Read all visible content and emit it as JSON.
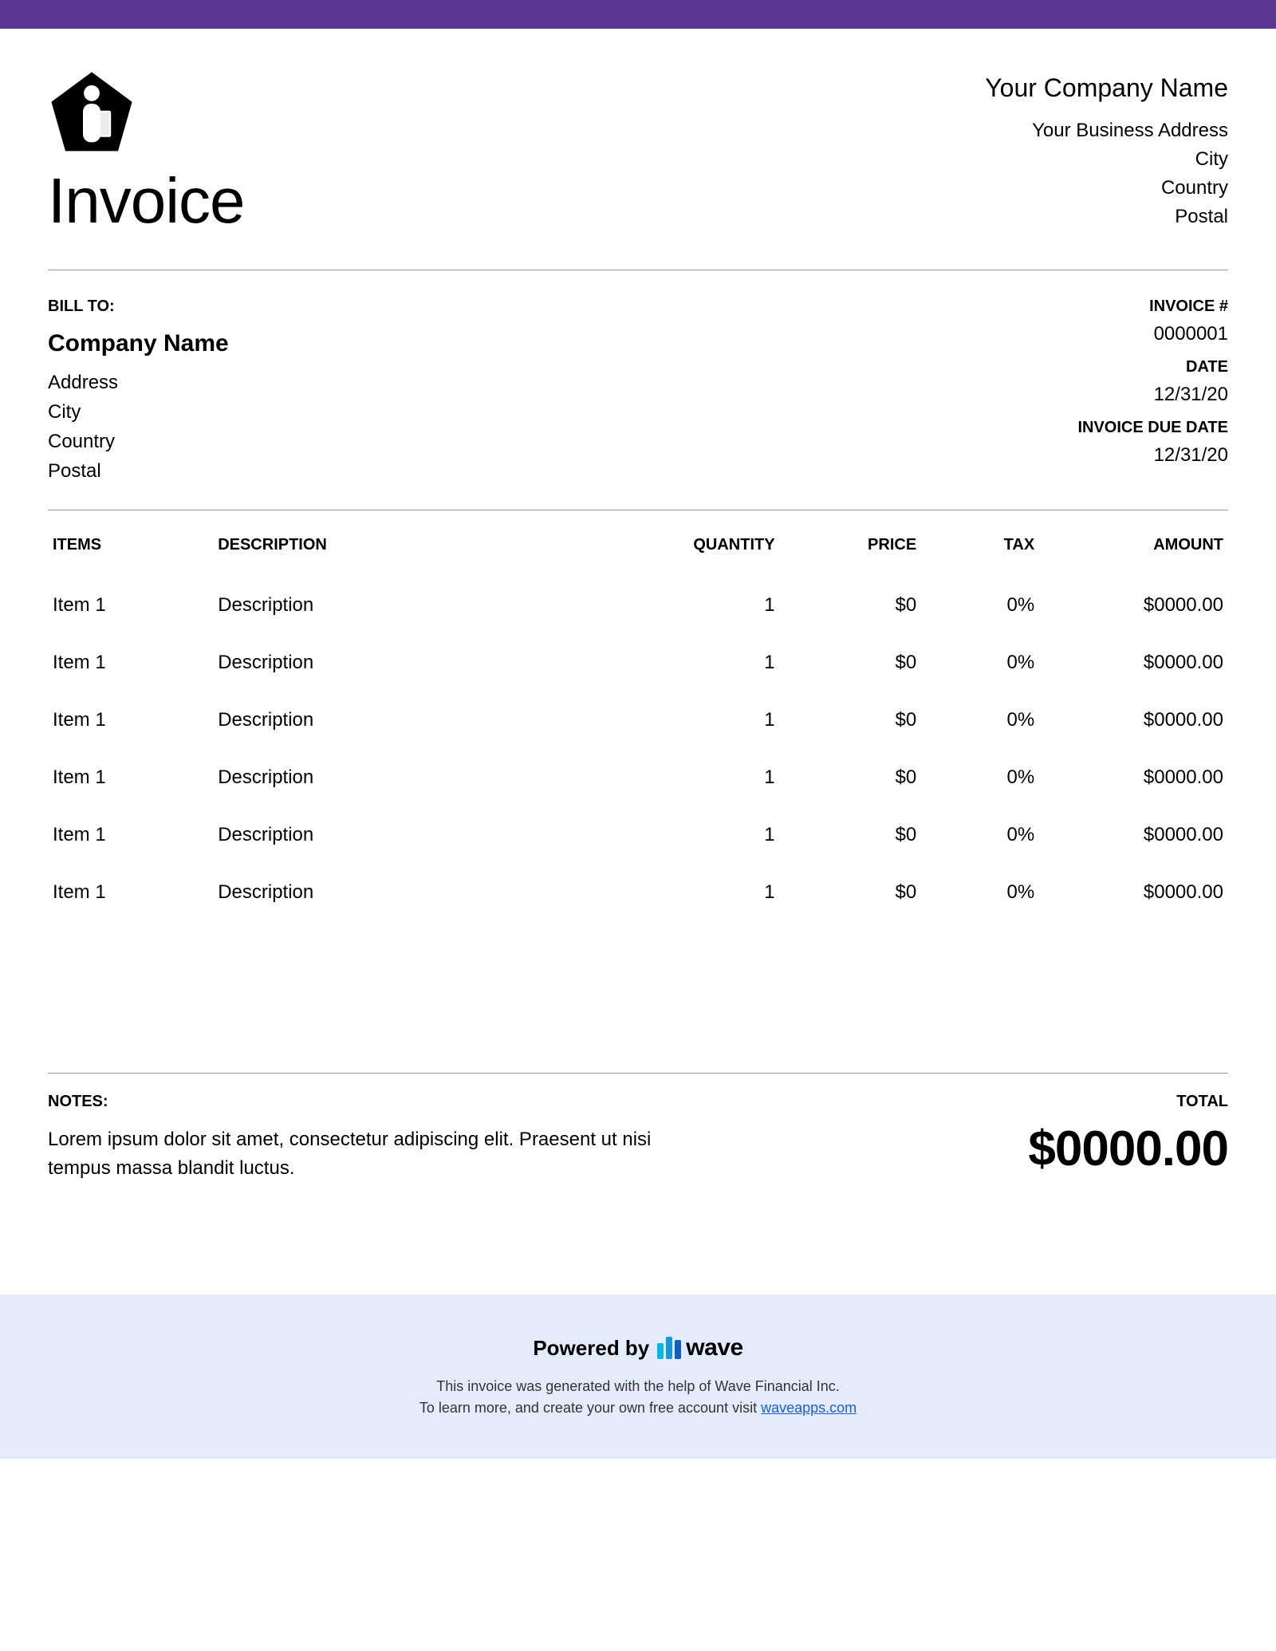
{
  "colors": {
    "topbar": "#5c3896",
    "footer_bg": "#e4ebfb",
    "text": "#000000",
    "divider": "#999999",
    "link": "#1a5fd0",
    "wave_bar1": "#0ab5e0",
    "wave_bar2": "#1498d8",
    "wave_bar3": "#0f5fbf"
  },
  "header": {
    "doc_title": "Invoice",
    "company_name": "Your Company Name",
    "address": "Your Business Address",
    "city": "City",
    "country": "Country",
    "postal": "Postal"
  },
  "bill_to": {
    "label": "BILL TO:",
    "company": "Company Name",
    "address": "Address",
    "city": "City",
    "country": "Country",
    "postal": "Postal"
  },
  "meta": {
    "invoice_num_label": "INVOICE #",
    "invoice_num": "0000001",
    "date_label": "DATE",
    "date": "12/31/20",
    "due_label": "INVOICE DUE DATE",
    "due": "12/31/20"
  },
  "table": {
    "headers": {
      "items": "ITEMS",
      "description": "DESCRIPTION",
      "quantity": "QUANTITY",
      "price": "PRICE",
      "tax": "TAX",
      "amount": "AMOUNT"
    },
    "rows": [
      {
        "item": "Item 1",
        "desc": "Description",
        "qty": "1",
        "price": "$0",
        "tax": "0%",
        "amount": "$0000.00"
      },
      {
        "item": "Item 1",
        "desc": "Description",
        "qty": "1",
        "price": "$0",
        "tax": "0%",
        "amount": "$0000.00"
      },
      {
        "item": "Item 1",
        "desc": "Description",
        "qty": "1",
        "price": "$0",
        "tax": "0%",
        "amount": "$0000.00"
      },
      {
        "item": "Item 1",
        "desc": "Description",
        "qty": "1",
        "price": "$0",
        "tax": "0%",
        "amount": "$0000.00"
      },
      {
        "item": "Item 1",
        "desc": "Description",
        "qty": "1",
        "price": "$0",
        "tax": "0%",
        "amount": "$0000.00"
      },
      {
        "item": "Item 1",
        "desc": "Description",
        "qty": "1",
        "price": "$0",
        "tax": "0%",
        "amount": "$0000.00"
      }
    ]
  },
  "notes": {
    "label": "NOTES:",
    "text": "Lorem ipsum dolor sit amet, consectetur adipiscing elit. Praesent ut nisi tempus massa blandit luctus."
  },
  "total": {
    "label": "TOTAL",
    "amount": "$0000.00"
  },
  "footer": {
    "powered_by": "Powered by",
    "wave": "wave",
    "line1": "This invoice was generated with the help of Wave Financial Inc.",
    "line2_pre": "To learn more, and create your own free account visit ",
    "link": "waveapps.com"
  }
}
